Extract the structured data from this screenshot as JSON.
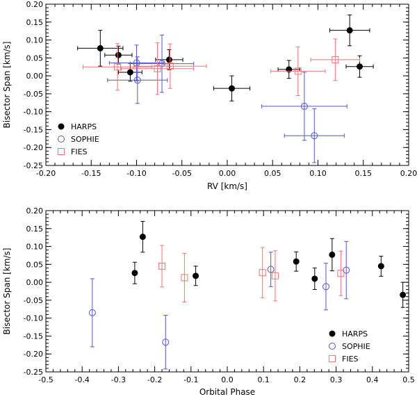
{
  "chart_data": [
    {
      "type": "scatter",
      "title": "",
      "xlabel": "RV [km/s]",
      "ylabel": "Bisector Span [km/s]",
      "xlim": [
        -0.2,
        0.2
      ],
      "ylim": [
        -0.25,
        0.2
      ],
      "xticks": [
        "-0.20",
        "-0.15",
        "-0.10",
        "-0.05",
        "0.00",
        "0.05",
        "0.10",
        "0.15",
        "0.20"
      ],
      "xtick_values": [
        -0.2,
        -0.15,
        -0.1,
        -0.05,
        0,
        0.05,
        0.1,
        0.15,
        0.2
      ],
      "yticks": [
        "0.20",
        "0.15",
        "0.10",
        "0.05",
        "0.00",
        "-0.05",
        "-0.10",
        "-0.15",
        "-0.20",
        "-0.25"
      ],
      "ytick_values": [
        0.2,
        0.15,
        0.1,
        0.05,
        0,
        -0.05,
        -0.1,
        -0.15,
        -0.2,
        -0.25
      ],
      "legend_position": "bottom-left",
      "series": [
        {
          "name": "HARPS",
          "marker": "filled-circle",
          "color": "#000000",
          "points": [
            {
              "x": -0.14,
              "y": 0.077,
              "xerr": 0.025,
              "yerr": 0.05
            },
            {
              "x": -0.12,
              "y": 0.058,
              "xerr": 0.015,
              "yerr": 0.025
            },
            {
              "x": -0.107,
              "y": 0.01,
              "xerr": 0.013,
              "yerr": 0.025
            },
            {
              "x": -0.064,
              "y": 0.045,
              "xerr": 0.015,
              "yerr": 0.028
            },
            {
              "x": 0.005,
              "y": -0.035,
              "xerr": 0.02,
              "yerr": 0.035
            },
            {
              "x": 0.068,
              "y": 0.018,
              "xerr": 0.012,
              "yerr": 0.025
            },
            {
              "x": 0.135,
              "y": 0.127,
              "xerr": 0.022,
              "yerr": 0.043
            },
            {
              "x": 0.146,
              "y": 0.026,
              "xerr": 0.015,
              "yerr": 0.03
            }
          ]
        },
        {
          "name": "SOPHIE",
          "marker": "open-circle",
          "color": "#5555cc",
          "points": [
            {
              "x": -0.1,
              "y": 0.036,
              "xerr": 0.03,
              "yerr": 0.05
            },
            {
              "x": -0.099,
              "y": -0.012,
              "xerr": 0.033,
              "yerr": 0.065
            },
            {
              "x": -0.072,
              "y": 0.034,
              "xerr": 0.035,
              "yerr": 0.08
            },
            {
              "x": 0.085,
              "y": -0.085,
              "xerr": 0.047,
              "yerr": 0.095
            },
            {
              "x": 0.096,
              "y": -0.167,
              "xerr": 0.033,
              "yerr": 0.075
            }
          ]
        },
        {
          "name": "FIES",
          "marker": "open-square",
          "color": "#ee7777",
          "points": [
            {
              "x": -0.121,
              "y": 0.025,
              "xerr": 0.038,
              "yerr": 0.065
            },
            {
              "x": -0.077,
              "y": 0.02,
              "xerr": 0.04,
              "yerr": 0.072
            },
            {
              "x": -0.063,
              "y": 0.027,
              "xerr": 0.04,
              "yerr": 0.062
            },
            {
              "x": 0.078,
              "y": 0.013,
              "xerr": 0.03,
              "yerr": 0.068
            },
            {
              "x": 0.119,
              "y": 0.045,
              "xerr": 0.027,
              "yerr": 0.058
            }
          ]
        }
      ]
    },
    {
      "type": "scatter",
      "title": "",
      "xlabel": "Orbital Phase",
      "ylabel": "Bisector Span [km/s]",
      "xlim": [
        -0.5,
        0.5
      ],
      "ylim": [
        -0.25,
        0.2
      ],
      "xticks": [
        "-0.5",
        "-0.4",
        "-0.3",
        "-0.2",
        "-0.1",
        "0.0",
        "0.1",
        "0.2",
        "0.3",
        "0.4",
        "0.5"
      ],
      "xtick_values": [
        -0.5,
        -0.4,
        -0.3,
        -0.2,
        -0.1,
        0,
        0.1,
        0.2,
        0.3,
        0.4,
        0.5
      ],
      "yticks": [
        "0.20",
        "0.15",
        "0.10",
        "0.05",
        "0.00",
        "-0.05",
        "-0.10",
        "-0.15",
        "-0.20",
        "-0.25"
      ],
      "ytick_values": [
        0.2,
        0.15,
        0.1,
        0.05,
        0,
        -0.05,
        -0.1,
        -0.15,
        -0.2,
        -0.25
      ],
      "legend_position": "bottom-right",
      "series": [
        {
          "name": "HARPS",
          "marker": "filled-circle",
          "color": "#000000",
          "points": [
            {
              "x": -0.255,
              "y": 0.026,
              "yerr": 0.03
            },
            {
              "x": -0.233,
              "y": 0.127,
              "yerr": 0.043
            },
            {
              "x": -0.087,
              "y": 0.018,
              "yerr": 0.027
            },
            {
              "x": 0.19,
              "y": 0.058,
              "yerr": 0.027
            },
            {
              "x": 0.241,
              "y": 0.01,
              "yerr": 0.03
            },
            {
              "x": 0.289,
              "y": 0.077,
              "yerr": 0.045
            },
            {
              "x": 0.424,
              "y": 0.045,
              "yerr": 0.028
            },
            {
              "x": 0.484,
              "y": -0.035,
              "yerr": 0.035
            }
          ]
        },
        {
          "name": "SOPHIE",
          "marker": "open-circle",
          "color": "#5555cc",
          "points": [
            {
              "x": -0.372,
              "y": -0.085,
              "yerr": 0.095
            },
            {
              "x": -0.17,
              "y": -0.167,
              "yerr": 0.075
            },
            {
              "x": 0.12,
              "y": 0.036,
              "yerr": 0.048
            },
            {
              "x": 0.272,
              "y": -0.012,
              "yerr": 0.065
            },
            {
              "x": 0.328,
              "y": 0.034,
              "yerr": 0.08
            }
          ]
        },
        {
          "name": "FIES",
          "marker": "open-square",
          "color": "#ee7777",
          "points": [
            {
              "x": -0.18,
              "y": 0.045,
              "yerr": 0.058
            },
            {
              "x": -0.118,
              "y": 0.013,
              "yerr": 0.068
            },
            {
              "x": 0.097,
              "y": 0.027,
              "yerr": 0.07
            },
            {
              "x": 0.132,
              "y": 0.018,
              "yerr": 0.07
            },
            {
              "x": 0.313,
              "y": 0.025,
              "yerr": 0.062
            }
          ]
        }
      ]
    }
  ]
}
